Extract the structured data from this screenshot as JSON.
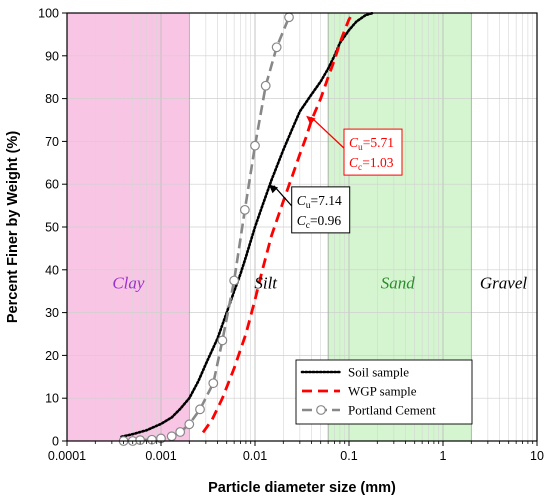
{
  "chart_data": {
    "type": "line",
    "xlabel": "Particle diameter size (mm)",
    "ylabel": "Percent Finer by Weight (%)",
    "xscale": "log",
    "xlim": [
      0.0001,
      10
    ],
    "ylim": [
      0,
      100
    ],
    "x_ticks": [
      {
        "value": 0.0001,
        "label": "0.0001"
      },
      {
        "value": 0.001,
        "label": "0.001"
      },
      {
        "value": 0.01,
        "label": "0.01"
      },
      {
        "value": 0.1,
        "label": "0.1"
      },
      {
        "value": 1,
        "label": "1"
      },
      {
        "value": 10,
        "label": "10"
      }
    ],
    "y_ticks": [
      0,
      10,
      20,
      30,
      40,
      50,
      60,
      70,
      80,
      90,
      100
    ],
    "grid": true,
    "zones": [
      {
        "label": "Clay",
        "from": 0.0001,
        "to": 0.002,
        "fill": "#f8c6e4",
        "label_color": "#9933cc",
        "label_x": 0.00045,
        "label_y": 37
      },
      {
        "label": "Silt",
        "from": 0.002,
        "to": 0.06,
        "fill": "none",
        "label_color": "#000000",
        "label_x": 0.013,
        "label_y": 37
      },
      {
        "label": "Sand",
        "from": 0.06,
        "to": 2,
        "fill": "#d4f5cf",
        "label_color": "#2e8b2e",
        "label_x": 0.33,
        "label_y": 37
      },
      {
        "label": "Gravel",
        "from": 2,
        "to": 10,
        "fill": "none",
        "label_color": "#000000",
        "label_x": 4.4,
        "label_y": 37
      }
    ],
    "series": [
      {
        "name": "Soil sample",
        "color": "#000000",
        "style": "dotted",
        "x": [
          0.00038,
          0.0005,
          0.0007,
          0.001,
          0.0013,
          0.0016,
          0.002,
          0.0025,
          0.003,
          0.004,
          0.005,
          0.006,
          0.007,
          0.008,
          0.01,
          0.012,
          0.015,
          0.02,
          0.025,
          0.03,
          0.04,
          0.05,
          0.06,
          0.07,
          0.08,
          0.1,
          0.12,
          0.15,
          0.18
        ],
        "y": [
          1,
          1.6,
          2.5,
          4,
          5.5,
          7.5,
          10,
          14,
          18,
          24,
          30,
          35,
          39,
          43,
          50,
          55,
          61,
          68,
          73,
          77,
          81,
          84,
          87,
          90,
          93,
          96,
          98,
          99.5,
          100
        ]
      },
      {
        "name": "WGP sample",
        "color": "#ff0000",
        "style": "dashed",
        "x": [
          0.0028,
          0.0035,
          0.0045,
          0.006,
          0.008,
          0.01,
          0.012,
          0.015,
          0.02,
          0.025,
          0.03,
          0.035,
          0.04,
          0.05,
          0.06,
          0.07,
          0.08,
          0.09,
          0.1,
          0.11
        ],
        "y": [
          2,
          5,
          10,
          17,
          25,
          33,
          40,
          48,
          56,
          62,
          67,
          71,
          75,
          80,
          85,
          89,
          93,
          96,
          98.5,
          100
        ]
      },
      {
        "name": "Portland Cement",
        "color": "#888888",
        "style": "dashed",
        "markers": "open-circle",
        "x": [
          0.0004,
          0.0005,
          0.0006,
          0.0008,
          0.001,
          0.0013,
          0.0016,
          0.002,
          0.0026,
          0.0036,
          0.0045,
          0.006,
          0.0078,
          0.01,
          0.013,
          0.017,
          0.023
        ],
        "y": [
          0,
          0,
          0.2,
          0.3,
          0.6,
          1.1,
          2.1,
          3.9,
          7.4,
          13.5,
          23.5,
          37.5,
          54,
          69,
          83,
          92,
          99
        ]
      }
    ],
    "legend": {
      "placement": "bottom-right"
    },
    "annotations": [
      {
        "text": "Cu=5.71, Cc=1.03",
        "color": "#ff0000",
        "cu_label": "C",
        "cu_sub": "u",
        "cu_value": "=5.71",
        "cc_label": "C",
        "cc_sub": "c",
        "cc_value": "=1.03",
        "arrow_to": {
          "x": 0.035,
          "y": 76
        },
        "box_at": {
          "x": 0.18,
          "y": 67.5
        }
      },
      {
        "text": "Cu=7.14, Cc=0.96",
        "color": "#000000",
        "cu_label": "C",
        "cu_sub": "u",
        "cu_value": "=7.14",
        "cc_label": "C",
        "cc_sub": "c",
        "cc_value": "=0.96",
        "arrow_to": {
          "x": 0.014,
          "y": 60
        },
        "box_at": {
          "x": 0.05,
          "y": 54
        }
      }
    ]
  }
}
